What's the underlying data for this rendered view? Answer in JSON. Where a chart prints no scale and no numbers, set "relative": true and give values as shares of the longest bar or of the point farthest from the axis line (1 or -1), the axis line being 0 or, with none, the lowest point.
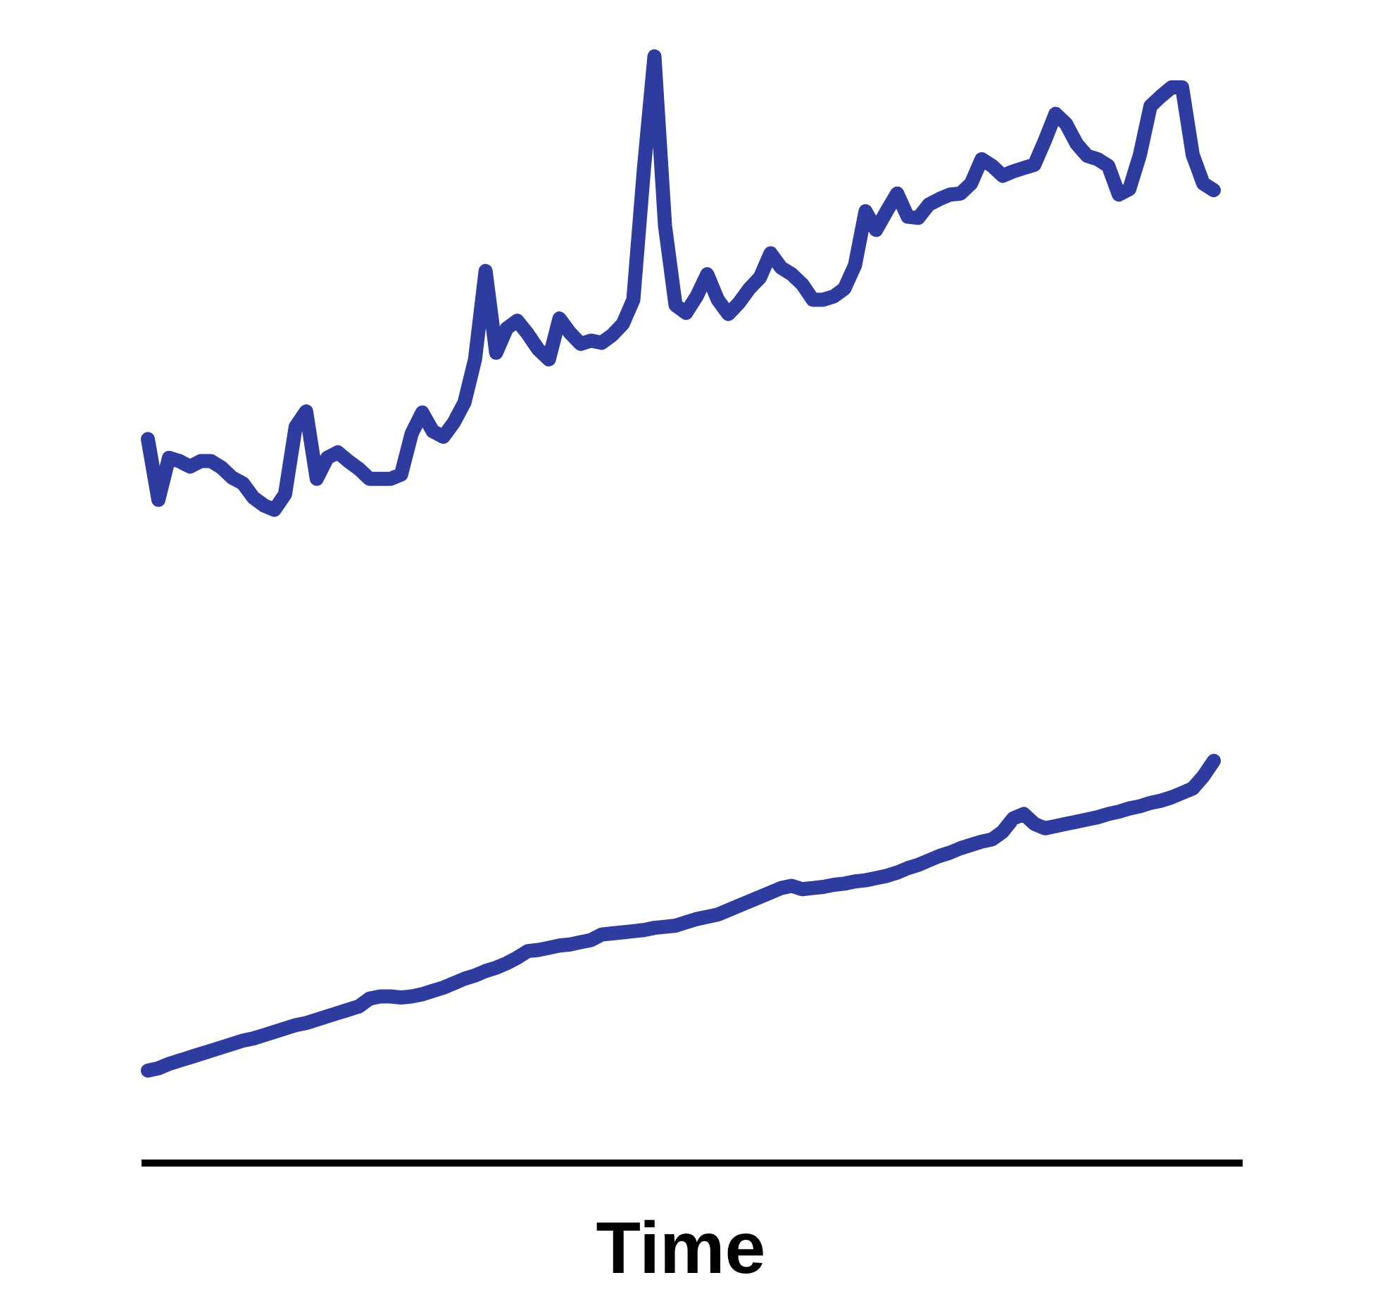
{
  "chart_data": {
    "type": "line",
    "relative": true,
    "xlabel": "Time",
    "categories": [
      null,
      null,
      null,
      null,
      null,
      null,
      null,
      null,
      null,
      null,
      null,
      null,
      null,
      null,
      null,
      null,
      null,
      null,
      null,
      null,
      null,
      null,
      null,
      null,
      null,
      null,
      null,
      null,
      null,
      null,
      null,
      null,
      null,
      null,
      null,
      null,
      null,
      null,
      null,
      null,
      null,
      null,
      null,
      null,
      null,
      null,
      null,
      null,
      null,
      null,
      null,
      null,
      null,
      null,
      null,
      null,
      null,
      null,
      null,
      null,
      null,
      null,
      null,
      null,
      null,
      null,
      null,
      null,
      null,
      null,
      null,
      null,
      null,
      null,
      null,
      null,
      null,
      null,
      null,
      null,
      null,
      null,
      null,
      null,
      null,
      null,
      null,
      null,
      null,
      null,
      null,
      null,
      null,
      null,
      null,
      null,
      null,
      null,
      null,
      null,
      null,
      null
    ],
    "series": [
      {
        "color": "#2d3c9e",
        "values": [
          0.654,
          0.599,
          0.637,
          0.634,
          0.629,
          0.634,
          0.634,
          0.628,
          0.619,
          0.614,
          0.601,
          0.594,
          0.59,
          0.604,
          0.665,
          0.679,
          0.618,
          0.637,
          0.642,
          0.634,
          0.627,
          0.618,
          0.618,
          0.618,
          0.622,
          0.659,
          0.678,
          0.661,
          0.656,
          0.669,
          0.687,
          0.726,
          0.806,
          0.732,
          0.754,
          0.761,
          0.749,
          0.735,
          0.726,
          0.763,
          0.75,
          0.74,
          0.743,
          0.741,
          0.748,
          0.758,
          0.78,
          0.898,
          1.0,
          0.847,
          0.775,
          0.768,
          0.783,
          0.803,
          0.78,
          0.767,
          0.777,
          0.79,
          0.8,
          0.822,
          0.809,
          0.803,
          0.794,
          0.78,
          0.78,
          0.783,
          0.79,
          0.811,
          0.86,
          0.843,
          0.86,
          0.876,
          0.855,
          0.854,
          0.866,
          0.871,
          0.875,
          0.876,
          0.885,
          0.907,
          0.901,
          0.892,
          0.896,
          0.899,
          0.902,
          0.924,
          0.948,
          0.939,
          0.921,
          0.91,
          0.907,
          0.901,
          0.875,
          0.88,
          0.911,
          0.955,
          0.964,
          0.972,
          0.972,
          0.911,
          0.885,
          0.879
        ]
      },
      {
        "color": "#2d3c9e",
        "values": [
          0.083,
          0.085,
          0.089,
          0.092,
          0.095,
          0.098,
          0.101,
          0.104,
          0.107,
          0.11,
          0.112,
          0.115,
          0.118,
          0.121,
          0.124,
          0.126,
          0.129,
          0.132,
          0.135,
          0.138,
          0.141,
          0.148,
          0.15,
          0.15,
          0.149,
          0.15,
          0.152,
          0.155,
          0.158,
          0.162,
          0.166,
          0.169,
          0.173,
          0.176,
          0.18,
          0.185,
          0.191,
          0.192,
          0.194,
          0.196,
          0.197,
          0.199,
          0.201,
          0.206,
          0.207,
          0.208,
          0.209,
          0.21,
          0.212,
          0.213,
          0.214,
          0.217,
          0.22,
          0.222,
          0.224,
          0.228,
          0.232,
          0.236,
          0.24,
          0.244,
          0.248,
          0.25,
          0.247,
          0.248,
          0.249,
          0.251,
          0.252,
          0.254,
          0.255,
          0.257,
          0.259,
          0.262,
          0.266,
          0.269,
          0.273,
          0.277,
          0.28,
          0.284,
          0.287,
          0.29,
          0.292,
          0.299,
          0.311,
          0.315,
          0.306,
          0.302,
          0.304,
          0.306,
          0.308,
          0.31,
          0.312,
          0.315,
          0.317,
          0.32,
          0.322,
          0.325,
          0.327,
          0.33,
          0.334,
          0.338,
          0.349,
          0.363
        ]
      }
    ]
  }
}
